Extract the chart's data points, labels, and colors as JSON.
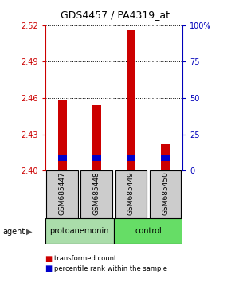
{
  "title": "GDS4457 / PA4319_at",
  "samples": [
    "GSM685447",
    "GSM685448",
    "GSM685449",
    "GSM685450"
  ],
  "bar_bottoms": [
    2.4,
    2.4,
    2.4,
    2.4
  ],
  "red_tops": [
    2.459,
    2.454,
    2.516,
    2.422
  ],
  "blue_bottoms": [
    2.408,
    2.408,
    2.408,
    2.408
  ],
  "blue_tops": [
    2.413,
    2.413,
    2.413,
    2.413
  ],
  "ylim": [
    2.4,
    2.52
  ],
  "yticks_left": [
    2.4,
    2.43,
    2.46,
    2.49,
    2.52
  ],
  "yticks_right": [
    0,
    25,
    50,
    75,
    100
  ],
  "ytick_right_labels": [
    "0",
    "25",
    "50",
    "75",
    "100%"
  ],
  "agent_labels": [
    "protoanemonin",
    "control"
  ],
  "proto_color": "#aaddaa",
  "control_color": "#66dd66",
  "bar_width": 0.25,
  "red_color": "#cc0000",
  "blue_color": "#0000cc",
  "background_xtick": "#cccccc",
  "left_yaxis_color": "#cc0000",
  "right_yaxis_color": "#0000bb",
  "legend_red_label": "transformed count",
  "legend_blue_label": "percentile rank within the sample",
  "agent_row_label": "agent"
}
